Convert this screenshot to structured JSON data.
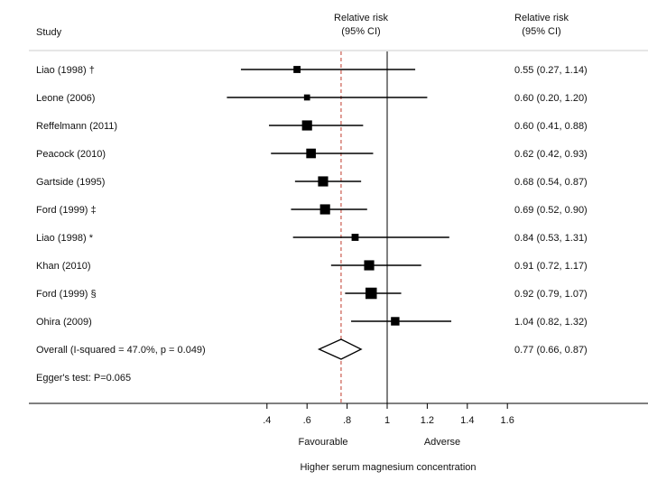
{
  "chart_data": {
    "type": "forest",
    "header": {
      "study": "Study",
      "effect_line1": "Relative risk",
      "effect_line2": "(95% CI)",
      "right_line1": "Relative risk",
      "right_line2": "(95% CI)"
    },
    "studies": [
      {
        "label": "Liao (1998) †",
        "rr": 0.55,
        "lo": 0.27,
        "hi": 1.14,
        "text": "0.55 (0.27, 1.14)",
        "weight": 2
      },
      {
        "label": "Leone (2006)",
        "rr": 0.6,
        "lo": 0.2,
        "hi": 1.2,
        "text": "0.60 (0.20, 1.20)",
        "weight": 1
      },
      {
        "label": "Reffelmann (2011)",
        "rr": 0.6,
        "lo": 0.41,
        "hi": 0.88,
        "text": "0.60 (0.41, 0.88)",
        "weight": 7
      },
      {
        "label": "Peacock (2010)",
        "rr": 0.62,
        "lo": 0.42,
        "hi": 0.93,
        "text": "0.62 (0.42, 0.93)",
        "weight": 6
      },
      {
        "label": "Gartside (1995)",
        "rr": 0.68,
        "lo": 0.54,
        "hi": 0.87,
        "text": "0.68 (0.54, 0.87)",
        "weight": 7
      },
      {
        "label": "Ford (1999) ‡",
        "rr": 0.69,
        "lo": 0.52,
        "hi": 0.9,
        "text": "0.69 (0.52, 0.90)",
        "weight": 7
      },
      {
        "label": "Liao (1998) *",
        "rr": 0.84,
        "lo": 0.53,
        "hi": 1.31,
        "text": "0.84 (0.53, 1.31)",
        "weight": 2
      },
      {
        "label": "Khan (2010)",
        "rr": 0.91,
        "lo": 0.72,
        "hi": 1.17,
        "text": "0.91 (0.72, 1.17)",
        "weight": 7
      },
      {
        "label": "Ford (1999) §",
        "rr": 0.92,
        "lo": 0.79,
        "hi": 1.07,
        "text": "0.92 (0.79, 1.07)",
        "weight": 10
      },
      {
        "label": "Ohira (2009)",
        "rr": 1.04,
        "lo": 0.82,
        "hi": 1.32,
        "text": "1.04 (0.82, 1.32)",
        "weight": 4
      }
    ],
    "overall": {
      "label": "Overall  (I-squared = 47.0%, p = 0.049)",
      "rr": 0.77,
      "lo": 0.66,
      "hi": 0.87,
      "text": "0.77 (0.66, 0.87)"
    },
    "note": "Egger's test: P=0.065",
    "xticks": [
      ".4",
      ".6",
      ".8",
      "1",
      "1.2",
      "1.4",
      "1.6"
    ],
    "xtick_values": [
      0.4,
      0.6,
      0.8,
      1.0,
      1.2,
      1.4,
      1.6
    ],
    "null_line": 1,
    "left_label": "Favourable",
    "right_label": "Adverse",
    "xlabel": "Higher serum magnesium concentration",
    "colors": {
      "overall_line": "#c0392b",
      "marks": "#000000"
    }
  }
}
